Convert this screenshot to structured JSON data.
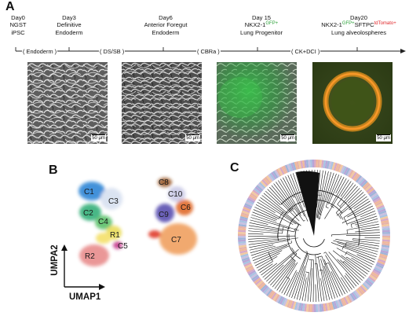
{
  "panel_a": {
    "label": "A",
    "stages": [
      {
        "day": "Day0",
        "lines": [
          "NGST",
          "iPSC"
        ]
      },
      {
        "day": "Day3",
        "lines": [
          "Definitive",
          "Endoderm"
        ]
      },
      {
        "day": "Day6",
        "lines": [
          "Anterior Foregut",
          "Endoderm"
        ]
      },
      {
        "day": "Day 15",
        "nkx_prefix": "NKX2-1",
        "nkx_sup": "GFP+",
        "lines": [
          "Lung  Progenitor"
        ]
      },
      {
        "day": "Day20",
        "nkx_prefix": "NKX2-1",
        "nkx_sup": "GFP+",
        "sftpc": "SFTPC",
        "sftpc_sup": "tdTomato+",
        "lines": [
          "Lung alveolospheres"
        ]
      }
    ],
    "conditions": [
      "( Endoderm )",
      "( DS/SB )",
      "( CBRa )",
      "( CK+DCI )"
    ],
    "scale_bar": "50 μm",
    "colors": {
      "gfp": "#2fa33b",
      "tdtomato": "#e0272a"
    }
  },
  "panel_b": {
    "label": "B",
    "clusters": [
      "C1",
      "C2",
      "C3",
      "C4",
      "R1",
      "R2",
      "C5",
      "C8",
      "C10",
      "C9",
      "C6",
      "C7"
    ],
    "xlabel": "UMAP1",
    "ylabel": "UMPA2"
  },
  "panel_c": {
    "label": "C"
  }
}
